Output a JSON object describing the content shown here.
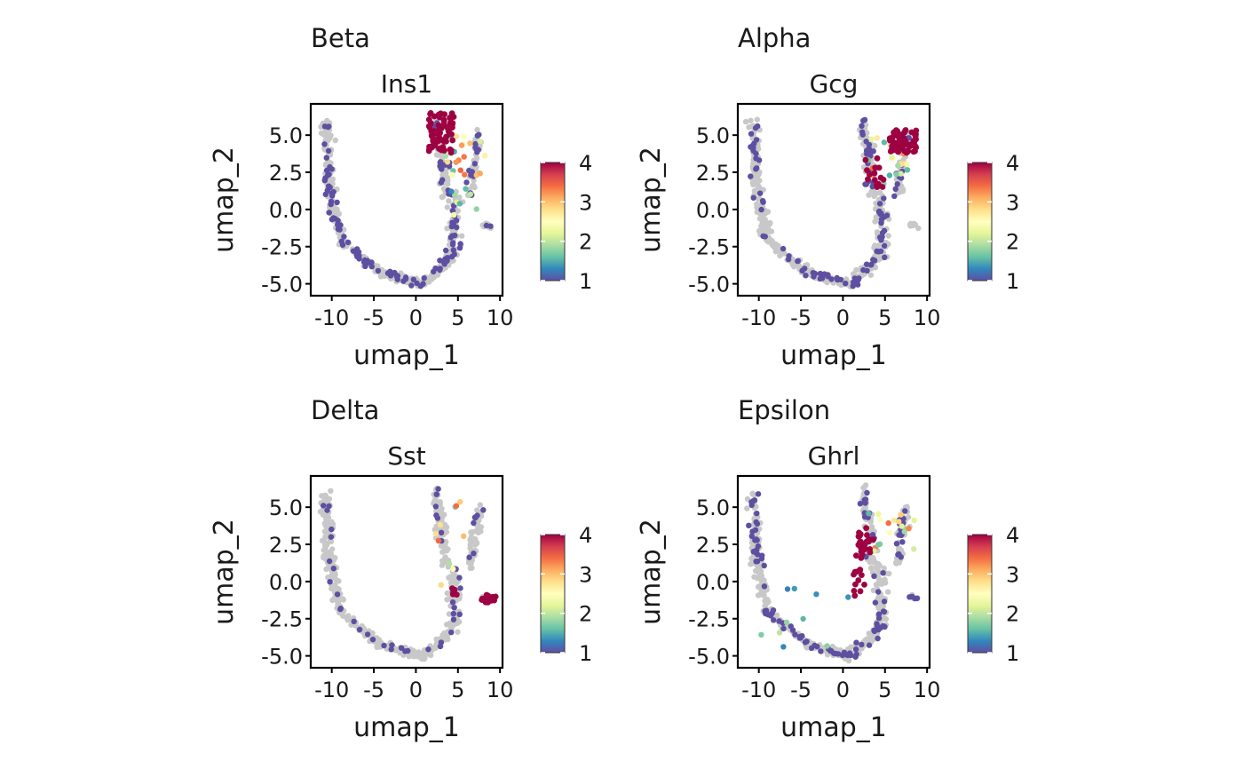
{
  "chart_data": [
    {
      "type": "scatter",
      "panel_title": "Beta",
      "title": "Ins1",
      "xlabel": "umap_1",
      "ylabel": "umap_2",
      "xlim": [
        -12.5,
        10.3
      ],
      "ylim": [
        -5.8,
        7.1
      ],
      "xticks": [
        "-10",
        "-5",
        "0",
        "5",
        "10"
      ],
      "yticks": [
        "5.0",
        "2.5",
        "0.0",
        "-2.5",
        "-5.0"
      ],
      "colorbar": {
        "min": 1,
        "max": 4,
        "labels": [
          "4",
          "3",
          "2",
          "1"
        ],
        "colors": [
          "#9E0142",
          "#D53E4F",
          "#F46D43",
          "#FDAE61",
          "#FEE08B",
          "#FFFFBF",
          "#E6F598",
          "#ABDDA4",
          "#66C2A5",
          "#3288BD",
          "#5E4FA2"
        ]
      },
      "background_color": "#C8C8C8",
      "hot_clusters": [
        {
          "x": [
            1.5,
            4.5
          ],
          "y": [
            3.8,
            6.5
          ],
          "value": 4,
          "n": 70
        }
      ],
      "mid_clusters": [
        {
          "x": [
            3.5,
            8.5
          ],
          "y": [
            2.0,
            5.0
          ],
          "value_range": [
            1.5,
            3.5
          ],
          "n": 20
        },
        {
          "x": [
            4.0,
            7.5
          ],
          "y": [
            -1.0,
            1.5
          ],
          "value_range": [
            1.3,
            2.5
          ],
          "n": 8
        }
      ],
      "low_fraction": 0.42
    },
    {
      "type": "scatter",
      "panel_title": "Alpha",
      "title": "Gcg",
      "xlabel": "umap_1",
      "ylabel": "umap_2",
      "xlim": [
        -12.5,
        10.3
      ],
      "ylim": [
        -5.8,
        7.1
      ],
      "xticks": [
        "-10",
        "-5",
        "0",
        "5",
        "10"
      ],
      "yticks": [
        "5.0",
        "2.5",
        "0.0",
        "-2.5",
        "-5.0"
      ],
      "colorbar": {
        "min": 1,
        "max": 4,
        "labels": [
          "4",
          "3",
          "2",
          "1"
        ],
        "colors": [
          "#9E0142",
          "#D53E4F",
          "#F46D43",
          "#FDAE61",
          "#FEE08B",
          "#FFFFBF",
          "#E6F598",
          "#ABDDA4",
          "#66C2A5",
          "#3288BD",
          "#5E4FA2"
        ]
      },
      "background_color": "#C8C8C8",
      "hot_clusters": [
        {
          "x": [
            5.5,
            8.8
          ],
          "y": [
            3.8,
            5.4
          ],
          "value": 4,
          "n": 60
        },
        {
          "x": [
            2.5,
            5.0
          ],
          "y": [
            1.5,
            3.5
          ],
          "value": 4,
          "n": 15
        }
      ],
      "mid_clusters": [
        {
          "x": [
            3.0,
            8.0
          ],
          "y": [
            1.5,
            5.0
          ],
          "value_range": [
            1.5,
            3.6
          ],
          "n": 22
        }
      ],
      "low_fraction": 0.38
    },
    {
      "type": "scatter",
      "panel_title": "Delta",
      "title": "Sst",
      "xlabel": "umap_1",
      "ylabel": "umap_2",
      "xlim": [
        -12.5,
        10.3
      ],
      "ylim": [
        -5.8,
        7.1
      ],
      "xticks": [
        "-10",
        "-5",
        "0",
        "5",
        "10"
      ],
      "yticks": [
        "5.0",
        "2.5",
        "0.0",
        "-2.5",
        "-5.0"
      ],
      "colorbar": {
        "min": 1,
        "max": 4,
        "labels": [
          "4",
          "3",
          "2",
          "1"
        ],
        "colors": [
          "#9E0142",
          "#D53E4F",
          "#F46D43",
          "#FDAE61",
          "#FEE08B",
          "#FFFFBF",
          "#E6F598",
          "#ABDDA4",
          "#66C2A5",
          "#3288BD",
          "#5E4FA2"
        ]
      },
      "background_color": "#C8C8C8",
      "hot_clusters": [
        {
          "x": [
            7.5,
            9.5
          ],
          "y": [
            -1.4,
            -0.9
          ],
          "value": 4,
          "n": 14
        },
        {
          "x": [
            4.3,
            5.2
          ],
          "y": [
            -0.9,
            -0.4
          ],
          "value": 4,
          "n": 4
        }
      ],
      "mid_clusters": [
        {
          "x": [
            2.0,
            6.5
          ],
          "y": [
            -0.5,
            6.0
          ],
          "value_range": [
            1.5,
            3.6
          ],
          "n": 10
        }
      ],
      "low_fraction": 0.15
    },
    {
      "type": "scatter",
      "panel_title": "Epsilon",
      "title": "Ghrl",
      "xlabel": "umap_1",
      "ylabel": "umap_2",
      "xlim": [
        -12.5,
        10.3
      ],
      "ylim": [
        -5.8,
        7.1
      ],
      "xticks": [
        "-10",
        "-5",
        "0",
        "5",
        "10"
      ],
      "yticks": [
        "5.0",
        "2.5",
        "0.0",
        "-2.5",
        "-5.0"
      ],
      "colorbar": {
        "min": 1,
        "max": 4,
        "labels": [
          "4",
          "3",
          "2",
          "1"
        ],
        "colors": [
          "#9E0142",
          "#D53E4F",
          "#F46D43",
          "#FDAE61",
          "#FEE08B",
          "#FFFFBF",
          "#E6F598",
          "#ABDDA4",
          "#66C2A5",
          "#3288BD",
          "#5E4FA2"
        ]
      },
      "background_color": "#C8C8C8",
      "hot_clusters": [
        {
          "x": [
            1.5,
            3.8
          ],
          "y": [
            1.5,
            3.6
          ],
          "value": 4,
          "n": 25
        },
        {
          "x": [
            1.2,
            2.6
          ],
          "y": [
            -1.0,
            0.8
          ],
          "value": 4,
          "n": 12
        }
      ],
      "mid_clusters": [
        {
          "x": [
            3.0,
            8.5
          ],
          "y": [
            2.0,
            5.0
          ],
          "value_range": [
            1.5,
            3.6
          ],
          "n": 18
        },
        {
          "x": [
            -11.0,
            2.0
          ],
          "y": [
            -5.0,
            1.5
          ],
          "value_range": [
            1.2,
            2.0
          ],
          "n": 10
        }
      ],
      "low_fraction": 0.4
    }
  ]
}
